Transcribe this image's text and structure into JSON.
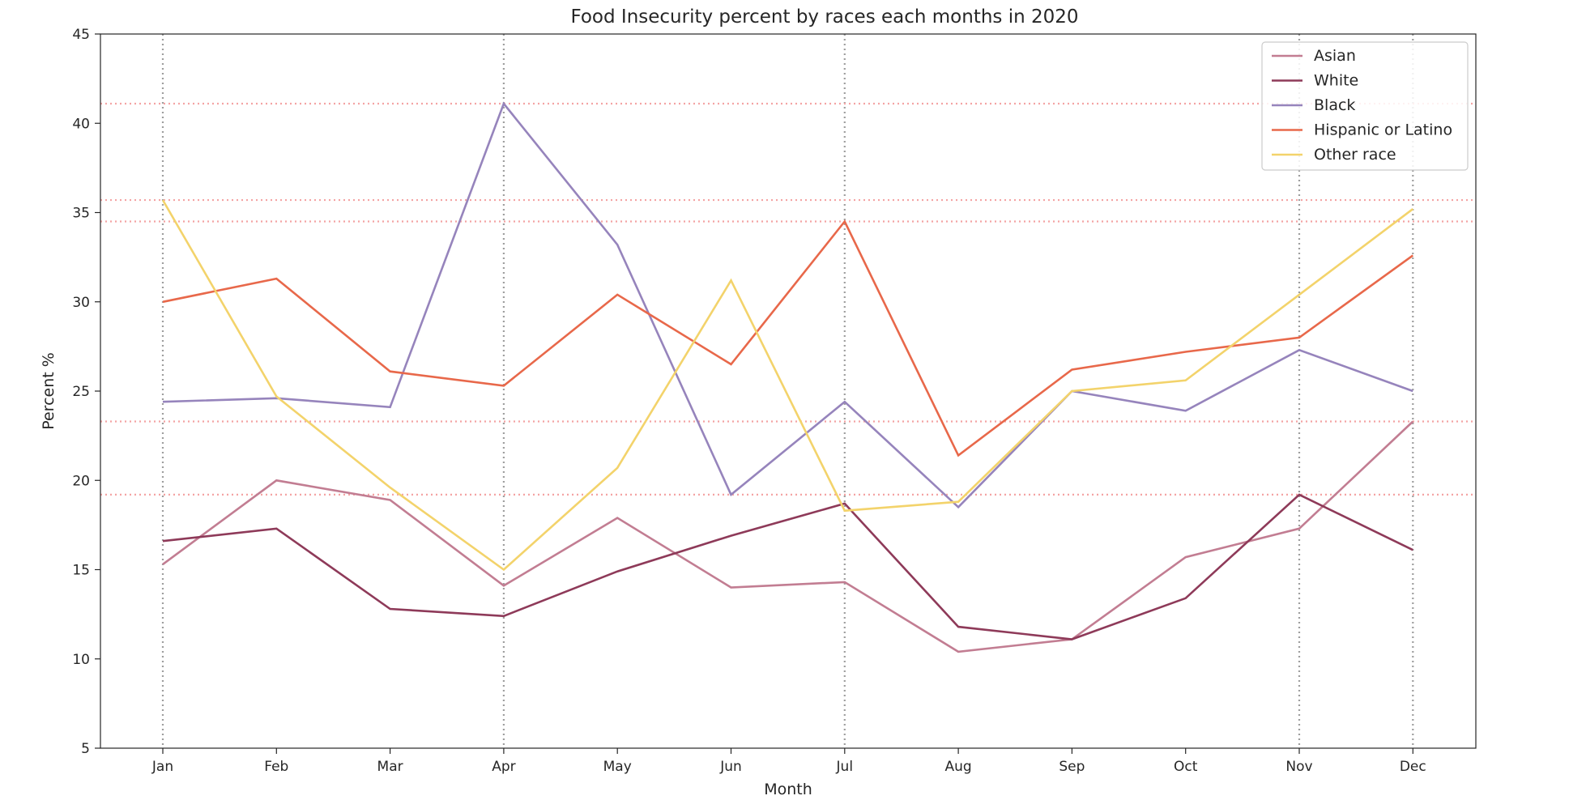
{
  "chart_data": {
    "type": "line",
    "title": "Food Insecurity percent by races each months in 2020",
    "xlabel": "Month",
    "ylabel": "Percent %",
    "categories": [
      "Jan",
      "Feb",
      "Mar",
      "Apr",
      "May",
      "Jun",
      "Jul",
      "Aug",
      "Sep",
      "Oct",
      "Nov",
      "Dec"
    ],
    "ylim": [
      5,
      45
    ],
    "yticks": [
      5,
      10,
      15,
      20,
      25,
      30,
      35,
      40,
      45
    ],
    "grid": false,
    "legend_position": "top-right",
    "series": [
      {
        "name": "Asian",
        "color": "#c27d92",
        "values": [
          15.3,
          20.0,
          18.9,
          14.1,
          17.9,
          14.0,
          14.3,
          10.4,
          11.1,
          15.7,
          17.3,
          23.3
        ]
      },
      {
        "name": "White",
        "color": "#8e3a59",
        "values": [
          16.6,
          17.3,
          12.8,
          12.4,
          14.9,
          16.9,
          18.7,
          11.8,
          11.1,
          13.4,
          19.2,
          16.1
        ]
      },
      {
        "name": "Black",
        "color": "#9684bc",
        "values": [
          24.4,
          24.6,
          24.1,
          41.1,
          33.2,
          19.2,
          24.4,
          18.5,
          25.0,
          23.9,
          27.3,
          25.0
        ]
      },
      {
        "name": "Hispanic or Latino",
        "color": "#e8684a",
        "values": [
          30.0,
          31.3,
          26.1,
          25.3,
          30.4,
          26.5,
          34.5,
          21.4,
          26.2,
          27.2,
          28.0,
          32.6
        ]
      },
      {
        "name": "Other race",
        "color": "#f3d36b",
        "values": [
          35.7,
          24.7,
          19.6,
          15.0,
          20.7,
          31.2,
          18.3,
          18.8,
          25.0,
          25.6,
          30.4,
          35.2
        ]
      }
    ],
    "reference_lines": {
      "vertical_at": [
        "Jan",
        "Apr",
        "Jul",
        "Nov",
        "Dec"
      ],
      "vertical_color": "#9e9e9e",
      "horizontal_at": [
        41.1,
        35.7,
        34.5,
        23.3,
        19.2
      ],
      "horizontal_color": "#f4a3a3"
    }
  }
}
